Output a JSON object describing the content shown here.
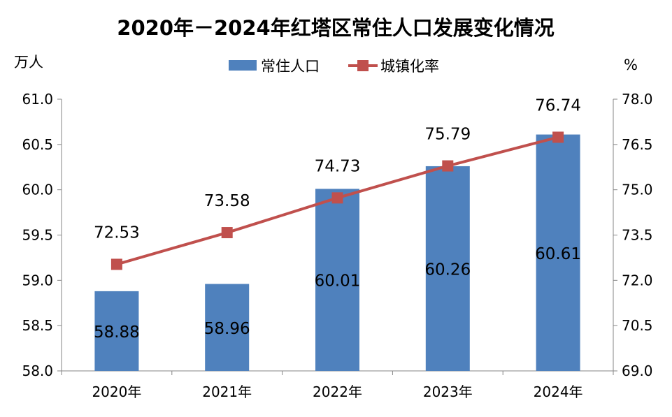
{
  "chart_data": {
    "type": "bar+line",
    "title": "2020年－2024年红塔区常住人口发展变化情况",
    "categories": [
      "2020年",
      "2021年",
      "2022年",
      "2023年",
      "2024年"
    ],
    "series": [
      {
        "name": "常住人口",
        "type": "bar",
        "axis": "left",
        "color": "#4F81BD",
        "values": [
          58.88,
          58.96,
          60.01,
          60.26,
          60.61
        ]
      },
      {
        "name": "城镇化率",
        "type": "line",
        "axis": "right",
        "color": "#C0504D",
        "marker": "square",
        "values": [
          72.53,
          73.58,
          74.73,
          75.79,
          76.74
        ]
      }
    ],
    "left_axis": {
      "label": "万人",
      "range": [
        58.0,
        61.0
      ],
      "ticks": [
        "58.0",
        "58.5",
        "59.0",
        "59.5",
        "60.0",
        "60.5",
        "61.0"
      ]
    },
    "right_axis": {
      "label": "%",
      "range": [
        69.0,
        78.0
      ],
      "ticks": [
        "69.0",
        "70.5",
        "72.0",
        "73.5",
        "75.0",
        "76.5",
        "78.0"
      ]
    },
    "legend_position": "top",
    "grid": false
  }
}
